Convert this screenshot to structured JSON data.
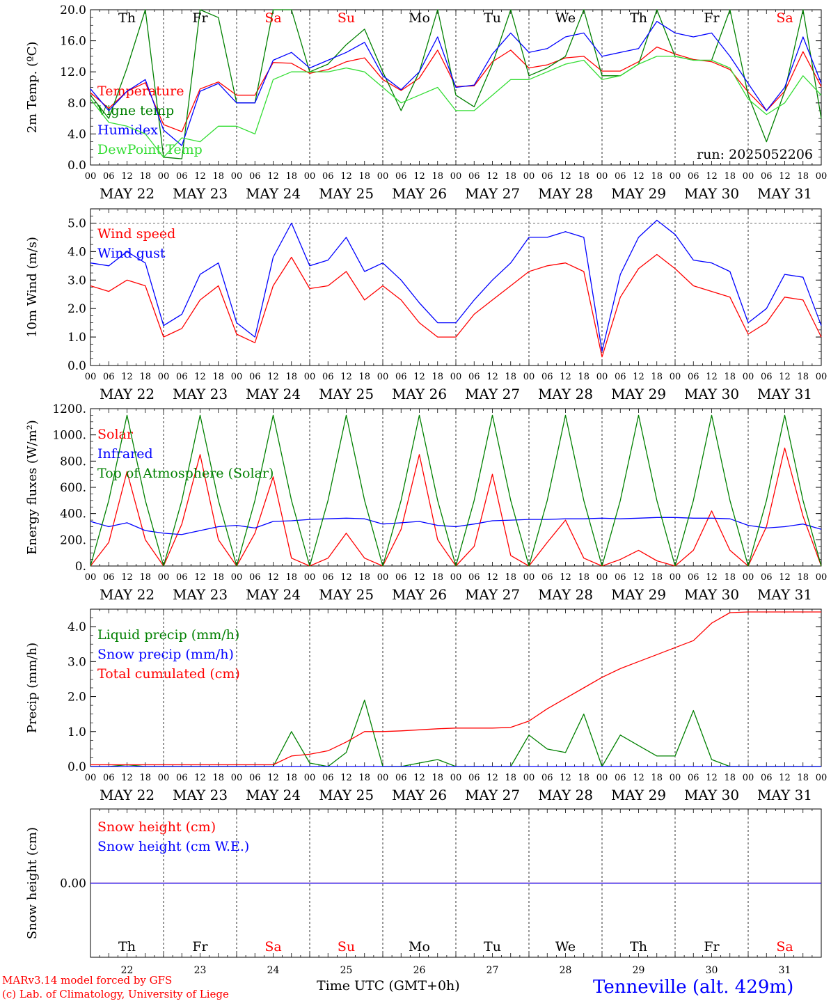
{
  "chart_data": [
    {
      "type": "line",
      "ylabel": "2m Temp. (ºC)",
      "ylim": [
        0,
        20
      ],
      "yticks": [
        "0.0",
        "4.0",
        "8.0",
        "12.0",
        "16.0",
        "20.0"
      ],
      "run_label": "run: 2025052206",
      "x_hours": [
        0,
        6,
        12,
        18,
        24,
        30,
        36,
        42,
        48,
        54,
        60,
        66,
        72,
        78,
        84,
        90,
        96,
        102,
        108,
        114,
        120,
        126,
        132,
        138,
        144,
        150,
        156,
        162,
        168,
        174,
        180,
        186,
        192,
        198,
        204,
        210,
        216,
        222,
        228,
        234,
        240
      ],
      "series": [
        {
          "name": "Temperature",
          "color": "#ff0000",
          "values": [
            9.3,
            7.3,
            9.5,
            10.6,
            5.2,
            4.3,
            9.8,
            10.7,
            9.0,
            9.0,
            13.2,
            13.1,
            11.8,
            12.3,
            13.3,
            13.8,
            11.0,
            9.6,
            11.2,
            14.8,
            10.1,
            10.2,
            13.3,
            14.8,
            12.5,
            12.9,
            13.8,
            14.0,
            12.1,
            12.1,
            13.3,
            15.2,
            14.3,
            13.6,
            13.3,
            12.3,
            9.4,
            7.0,
            9.5,
            14.6,
            10.1
          ]
        },
        {
          "name": "Vigne temp",
          "color": "#008000",
          "values": [
            9.0,
            6.0,
            12.5,
            20.0,
            1.0,
            0.8,
            20.0,
            19.0,
            8.0,
            8.0,
            20.0,
            20.0,
            12.0,
            13.0,
            15.5,
            17.5,
            12.0,
            7.0,
            12.0,
            20.0,
            9.0,
            7.5,
            13.0,
            20.0,
            11.5,
            12.5,
            14.0,
            20.0,
            11.5,
            11.5,
            13.0,
            20.0,
            14.0,
            13.5,
            13.5,
            20.0,
            9.0,
            3.0,
            9.5,
            20.0,
            6.0
          ]
        },
        {
          "name": "Humidex",
          "color": "#0000ff",
          "values": [
            9.8,
            7.0,
            9.5,
            11.0,
            4.5,
            2.5,
            9.5,
            10.5,
            8.0,
            8.0,
            13.5,
            14.5,
            12.5,
            13.5,
            14.5,
            15.8,
            11.5,
            9.7,
            12.0,
            16.5,
            10.0,
            10.3,
            14.3,
            17.0,
            14.5,
            15.0,
            16.5,
            17.0,
            14.0,
            14.5,
            15.0,
            18.5,
            17.0,
            16.5,
            17.0,
            14.0,
            10.5,
            7.0,
            10.0,
            16.5,
            10.5
          ]
        },
        {
          "name": "DewPoint Temp",
          "color": "#33dd33",
          "values": [
            8.5,
            5.5,
            5.0,
            4.0,
            1.0,
            3.5,
            3.0,
            5.0,
            5.0,
            4.0,
            11.0,
            12.0,
            12.0,
            12.0,
            12.5,
            12.0,
            10.0,
            8.0,
            9.0,
            10.0,
            7.0,
            7.0,
            9.0,
            11.0,
            11.0,
            12.0,
            13.0,
            13.5,
            11.0,
            11.5,
            13.0,
            14.0,
            14.0,
            13.5,
            13.5,
            12.5,
            8.5,
            6.5,
            8.0,
            11.5,
            9.0
          ]
        }
      ]
    },
    {
      "type": "line",
      "ylabel": "10m Wind (m/s)",
      "ylim": [
        0,
        5.5
      ],
      "yticks": [
        "0.0",
        "1.0",
        "2.0",
        "3.0",
        "4.0",
        "5.0"
      ],
      "ref_line": 5.0,
      "x_hours": [
        0,
        6,
        12,
        18,
        24,
        30,
        36,
        42,
        48,
        54,
        60,
        66,
        72,
        78,
        84,
        90,
        96,
        102,
        108,
        114,
        120,
        126,
        132,
        138,
        144,
        150,
        156,
        162,
        168,
        174,
        180,
        186,
        192,
        198,
        204,
        210,
        216,
        222,
        228,
        234,
        240
      ],
      "series": [
        {
          "name": "Wind speed",
          "color": "#ff0000",
          "values": [
            2.8,
            2.6,
            3.0,
            2.8,
            1.0,
            1.3,
            2.3,
            2.8,
            1.1,
            0.8,
            2.8,
            3.8,
            2.7,
            2.8,
            3.3,
            2.3,
            2.8,
            2.3,
            1.5,
            1.0,
            1.0,
            1.8,
            2.3,
            2.8,
            3.3,
            3.5,
            3.6,
            3.3,
            0.3,
            2.4,
            3.4,
            3.9,
            3.4,
            2.8,
            2.6,
            2.4,
            1.1,
            1.5,
            2.4,
            2.3,
            1.0
          ]
        },
        {
          "name": "Wind gust",
          "color": "#0000ff",
          "values": [
            3.6,
            3.5,
            4.0,
            3.6,
            1.4,
            1.8,
            3.2,
            3.6,
            1.5,
            1.0,
            3.8,
            5.0,
            3.5,
            3.7,
            4.5,
            3.3,
            3.6,
            3.0,
            2.2,
            1.5,
            1.5,
            2.3,
            3.0,
            3.6,
            4.5,
            4.5,
            4.7,
            4.5,
            0.5,
            3.2,
            4.5,
            5.1,
            4.6,
            3.7,
            3.6,
            3.3,
            1.5,
            2.0,
            3.2,
            3.1,
            1.4
          ]
        }
      ]
    },
    {
      "type": "line",
      "ylabel": "Energy fluxes (W/m²)",
      "ylim": [
        0,
        1200
      ],
      "yticks": [
        "0.",
        "200.",
        "400.",
        "600.",
        "800.",
        "1000.",
        "1200."
      ],
      "x_hours": [
        0,
        6,
        12,
        18,
        24,
        30,
        36,
        42,
        48,
        54,
        60,
        66,
        72,
        78,
        84,
        90,
        96,
        102,
        108,
        114,
        120,
        126,
        132,
        138,
        144,
        150,
        156,
        162,
        168,
        174,
        180,
        186,
        192,
        198,
        204,
        210,
        216,
        222,
        228,
        234,
        240
      ],
      "series": [
        {
          "name": "Solar",
          "color": "#ff0000",
          "values": [
            0,
            180,
            720,
            200,
            0,
            320,
            850,
            200,
            0,
            250,
            680,
            60,
            0,
            60,
            250,
            60,
            0,
            280,
            850,
            200,
            0,
            150,
            700,
            80,
            0,
            180,
            350,
            60,
            0,
            50,
            120,
            40,
            0,
            120,
            420,
            120,
            0,
            300,
            900,
            380,
            0
          ]
        },
        {
          "name": "Infrared",
          "color": "#0000ff",
          "values": [
            340,
            300,
            330,
            270,
            250,
            240,
            270,
            300,
            310,
            290,
            340,
            345,
            355,
            360,
            365,
            360,
            320,
            330,
            340,
            310,
            300,
            320,
            345,
            350,
            355,
            355,
            360,
            360,
            365,
            360,
            365,
            370,
            370,
            365,
            365,
            360,
            310,
            290,
            300,
            320,
            280
          ]
        },
        {
          "name": "Top of Atmosphere (Solar)",
          "color": "#008000",
          "values": [
            0,
            500,
            1150,
            500,
            0,
            500,
            1150,
            500,
            0,
            500,
            1150,
            500,
            0,
            500,
            1150,
            500,
            0,
            500,
            1150,
            500,
            0,
            500,
            1150,
            500,
            0,
            500,
            1150,
            500,
            0,
            500,
            1150,
            500,
            0,
            500,
            1150,
            500,
            0,
            500,
            1150,
            500,
            0
          ]
        }
      ]
    },
    {
      "type": "line",
      "ylabel": "Precip (mm/h)",
      "ylim": [
        0,
        4.5
      ],
      "yticks": [
        "0.0",
        "1.0",
        "2.0",
        "3.0",
        "4.0"
      ],
      "x_hours": [
        0,
        6,
        12,
        18,
        24,
        30,
        36,
        42,
        48,
        54,
        60,
        66,
        72,
        78,
        84,
        90,
        96,
        102,
        108,
        114,
        120,
        126,
        132,
        138,
        144,
        150,
        156,
        162,
        168,
        174,
        180,
        186,
        192,
        198,
        204,
        210,
        216,
        222,
        228,
        234,
        240
      ],
      "series": [
        {
          "name": "Liquid precip (mm/h)",
          "color": "#008000",
          "values": [
            0,
            0,
            0.05,
            0,
            0,
            0,
            0,
            0,
            0,
            0,
            0,
            1.0,
            0.1,
            0,
            0.4,
            1.9,
            0,
            0,
            0.1,
            0.2,
            0,
            0,
            0,
            0,
            0.9,
            0.5,
            0.4,
            1.5,
            0,
            0.9,
            0.6,
            0.3,
            0.3,
            1.6,
            0.2,
            0,
            0,
            0,
            0,
            0,
            0
          ]
        },
        {
          "name": "Snow precip (mm/h)",
          "color": "#0000ff",
          "values": [
            0,
            0,
            0,
            0,
            0,
            0,
            0,
            0,
            0,
            0,
            0,
            0,
            0,
            0,
            0,
            0,
            0,
            0,
            0,
            0,
            0,
            0,
            0,
            0,
            0,
            0,
            0,
            0,
            0,
            0,
            0,
            0,
            0,
            0,
            0,
            0,
            0,
            0,
            0,
            0,
            0
          ]
        },
        {
          "name": "Total cumulated (cm)",
          "color": "#ff0000",
          "values": [
            0.05,
            0.05,
            0.05,
            0.05,
            0.05,
            0.05,
            0.05,
            0.05,
            0.05,
            0.05,
            0.05,
            0.3,
            0.35,
            0.45,
            0.7,
            1.0,
            1.0,
            1.02,
            1.05,
            1.08,
            1.1,
            1.1,
            1.1,
            1.12,
            1.3,
            1.65,
            1.95,
            2.25,
            2.55,
            2.8,
            3.0,
            3.2,
            3.4,
            3.6,
            4.1,
            4.4,
            4.42,
            4.42,
            4.42,
            4.42,
            4.42
          ]
        }
      ]
    },
    {
      "type": "line",
      "ylabel": "Snow height (cm)",
      "ylim": [
        -1,
        1
      ],
      "yticks": [
        "0.00"
      ],
      "x_hours": [
        0,
        240
      ],
      "series": [
        {
          "name": "Snow height (cm)",
          "color": "#ff0000",
          "values": [
            0,
            0
          ]
        },
        {
          "name": "Snow height (cm W.E.)",
          "color": "#0000ff",
          "values": [
            0,
            0
          ]
        }
      ]
    }
  ],
  "axes": {
    "hour_labels": [
      "00",
      "06",
      "12",
      "18"
    ],
    "final_hour_label": "00",
    "dates": [
      "MAY 22",
      "MAY 23",
      "MAY 24",
      "MAY 25",
      "MAY 26",
      "MAY 27",
      "MAY 28",
      "MAY 29",
      "MAY 30",
      "MAY 31"
    ],
    "weekdays": [
      "Th",
      "Fr",
      "Sa",
      "Su",
      "Mo",
      "Tu",
      "We",
      "Th",
      "Fr",
      "Sa"
    ],
    "weekend_flags": [
      false,
      false,
      true,
      true,
      false,
      false,
      false,
      false,
      false,
      true
    ],
    "day_numbers": [
      "22",
      "23",
      "24",
      "25",
      "26",
      "27",
      "28",
      "29",
      "30",
      "31"
    ]
  },
  "colors": {
    "weekday": "#000000",
    "weekend": "#ff0000",
    "footer_red": "#ff0000",
    "station_blue": "#0000ff"
  },
  "footer": {
    "model_line1": "MARv3.14 model forced by GFS",
    "model_line2": "(c) Lab. of Climatology, University of Liege",
    "time_axis_label": "Time UTC (GMT+0h)",
    "station": "Tenneville (alt. 429m)"
  }
}
